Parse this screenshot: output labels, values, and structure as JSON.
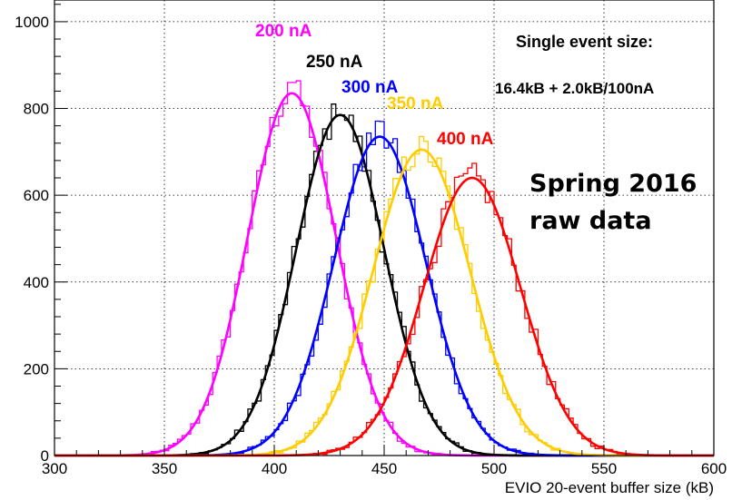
{
  "chart_data": {
    "type": "line",
    "xlabel": "EVIO 20-event buffer size (kB)",
    "ylabel": "",
    "xlim": [
      300,
      600
    ],
    "ylim": [
      0,
      1050
    ],
    "x_ticks": [
      "300",
      "350",
      "400",
      "450",
      "500",
      "550",
      "600"
    ],
    "y_ticks": [
      "0",
      "200",
      "400",
      "600",
      "800",
      "1000"
    ],
    "grid": true,
    "series": [
      {
        "name": "200 nA",
        "color": "#ff00ff",
        "mean": 408,
        "peak": 835,
        "sigma": 20,
        "hist_peak": 875
      },
      {
        "name": "250 nA",
        "color": "#000000",
        "mean": 430,
        "peak": 785,
        "sigma": 20,
        "hist_peak": 800
      },
      {
        "name": "300 nA",
        "color": "#0000ff",
        "mean": 448,
        "peak": 735,
        "sigma": 21,
        "hist_peak": 785
      },
      {
        "name": "350 nA",
        "color": "#ffcc00",
        "mean": 467,
        "peak": 705,
        "sigma": 22,
        "hist_peak": 710
      },
      {
        "name": "400 nA",
        "color": "#ff0000",
        "mean": 490,
        "peak": 640,
        "sigma": 22,
        "hist_peak": 650
      }
    ],
    "annotations": {
      "size_title": "Single event size:",
      "size_formula": "16.4kB + 2.0kB/100nA",
      "dataset_line1": "Spring 2016",
      "dataset_line2": "raw data"
    }
  }
}
